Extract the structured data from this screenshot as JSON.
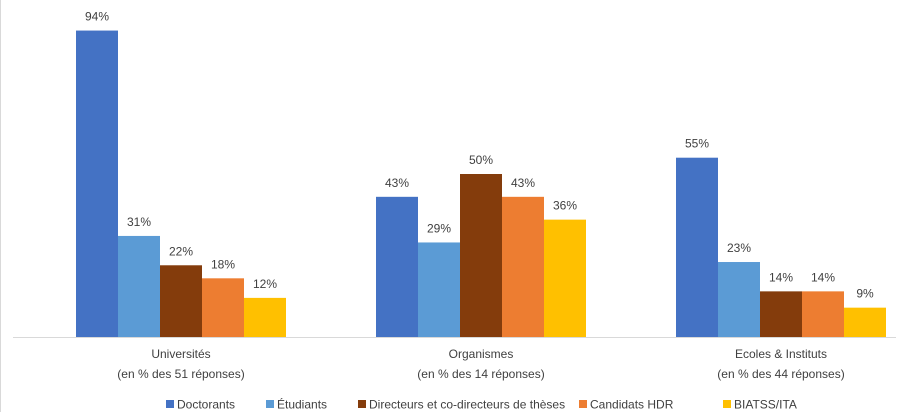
{
  "chart_data": {
    "type": "bar",
    "title": "",
    "xlabel": "",
    "ylabel": "",
    "ylim": [
      0,
      100
    ],
    "grid": false,
    "legend_position": "bottom",
    "categories": [
      {
        "line1": "Universités",
        "line2": "(en % des 51 réponses)"
      },
      {
        "line1": "Organismes",
        "line2": "(en % des 14 réponses)"
      },
      {
        "line1": "Ecoles & Instituts",
        "line2": "(en % des 44 réponses)"
      }
    ],
    "series": [
      {
        "name": "Doctorants",
        "color": "#4472C4",
        "values": [
          94,
          43,
          55
        ],
        "labels": [
          "94%",
          "43%",
          "55%"
        ]
      },
      {
        "name": "Étudiants",
        "color": "#5B9BD5",
        "values": [
          31,
          29,
          23
        ],
        "labels": [
          "31%",
          "29%",
          "23%"
        ]
      },
      {
        "name": "Directeurs et co-directeurs de thèses",
        "color": "#843C0C",
        "values": [
          22,
          50,
          14
        ],
        "labels": [
          "22%",
          "50%",
          "14%"
        ]
      },
      {
        "name": "Candidats HDR",
        "color": "#ED7D31",
        "values": [
          18,
          43,
          14
        ],
        "labels": [
          "18%",
          "43%",
          "14%"
        ]
      },
      {
        "name": "BIATSS/ITA",
        "color": "#FFC000",
        "values": [
          12,
          36,
          9
        ],
        "labels": [
          "12%",
          "36%",
          "9%"
        ]
      }
    ]
  }
}
